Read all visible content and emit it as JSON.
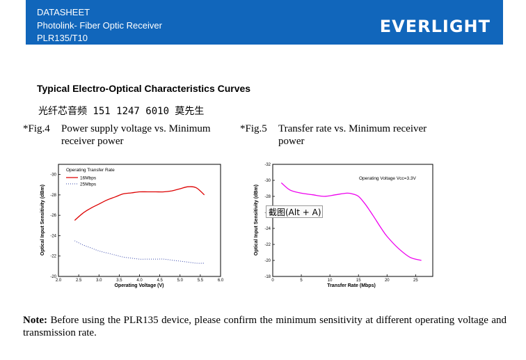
{
  "header": {
    "line1": "DATASHEET",
    "line2": "Photolink- Fiber Optic Receiver",
    "line3": "PLR135/T10",
    "logo": "EVERLIGHT",
    "bg_color": "#1166bb"
  },
  "section_title": "Typical Electro-Optical Characteristics Curves",
  "chinese_line": "光纤芯音频 151 1247 6010 莫先生",
  "fig4": {
    "number": "*Fig.4",
    "caption": "Power supply voltage vs. Minimum receiver power"
  },
  "fig5": {
    "number": "*Fig.5",
    "caption": "Transfer rate vs. Minimum receiver power"
  },
  "tooltip": "截图(Alt + A)",
  "note": {
    "label": "Note:",
    "text": "Before using the PLR135 device, please confirm the minimum sensitivity at different operating voltage and transmission rate."
  },
  "chart_data": [
    {
      "type": "line",
      "xlabel": "Operating Voltage (V)",
      "ylabel": "Optical Input Sensitivity (dBm)",
      "xlim": [
        2.0,
        6.0
      ],
      "ylim": [
        -20,
        -31
      ],
      "x_ticks": [
        "2.0",
        "2.5",
        "3.0",
        "3.5",
        "4.0",
        "4.5",
        "5.0",
        "5.5",
        "6.0"
      ],
      "y_ticks": [
        "-30",
        "-28",
        "-26",
        "-24",
        "-22",
        "-20"
      ],
      "legend_title": "Operating Transfer Rate",
      "legend_position": "top-left",
      "series": [
        {
          "name": "16Mbps",
          "color": "#dd0000",
          "style": "solid",
          "x": [
            2.4,
            2.6,
            2.8,
            3.0,
            3.2,
            3.4,
            3.6,
            3.8,
            4.0,
            4.2,
            4.4,
            4.6,
            4.8,
            5.0,
            5.2,
            5.4,
            5.6
          ],
          "y": [
            -25.5,
            -26.2,
            -26.7,
            -27.1,
            -27.5,
            -27.8,
            -28.1,
            -28.2,
            -28.3,
            -28.3,
            -28.3,
            -28.3,
            -28.4,
            -28.6,
            -28.8,
            -28.7,
            -28.0
          ]
        },
        {
          "name": "25Mbps",
          "color": "#3344aa",
          "style": "dotted",
          "x": [
            2.4,
            2.6,
            2.8,
            3.0,
            3.2,
            3.4,
            3.6,
            3.8,
            4.0,
            4.2,
            4.4,
            4.6,
            4.8,
            5.0,
            5.2,
            5.4,
            5.6
          ],
          "y": [
            -23.5,
            -23.1,
            -22.8,
            -22.5,
            -22.3,
            -22.1,
            -21.9,
            -21.8,
            -21.7,
            -21.7,
            -21.7,
            -21.7,
            -21.6,
            -21.5,
            -21.4,
            -21.3,
            -21.3
          ]
        }
      ]
    },
    {
      "type": "line",
      "xlabel": "Transfer Rate (Mbps)",
      "ylabel": "Optical Input Sensitivity (dBm)",
      "xlim": [
        0,
        28
      ],
      "ylim": [
        -18,
        -32
      ],
      "x_ticks": [
        "0",
        "5",
        "10",
        "15",
        "20",
        "25"
      ],
      "y_ticks": [
        "-32",
        "-30",
        "-28",
        "-26",
        "-24",
        "-22",
        "-20",
        "-18"
      ],
      "annotation": "Operating Voltage Vcc=3.3V",
      "series": [
        {
          "color": "#ee00ee",
          "style": "solid",
          "x": [
            1.5,
            3,
            5,
            7,
            9,
            11,
            13,
            14,
            15,
            16,
            17,
            18,
            19,
            20,
            22,
            24,
            26
          ],
          "y": [
            -29.7,
            -28.8,
            -28.4,
            -28.2,
            -28.0,
            -28.2,
            -28.4,
            -28.3,
            -28.0,
            -27.2,
            -26.2,
            -25.1,
            -24.0,
            -23.0,
            -21.5,
            -20.4,
            -20.0
          ]
        }
      ]
    }
  ]
}
